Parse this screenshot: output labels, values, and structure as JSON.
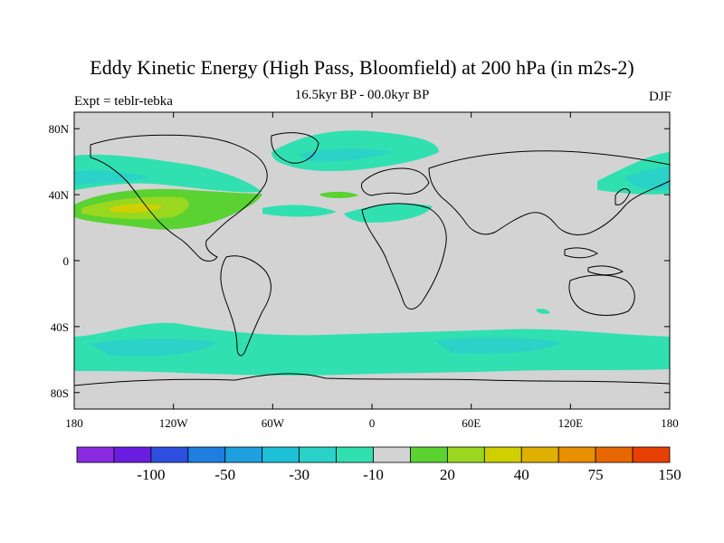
{
  "title": "Eddy Kinetic Energy (High Pass, Bloomfield) at 200 hPa (in m2s-2)",
  "subtitle": "16.5kyr BP - 00.0kyr BP",
  "left_label": "Expt = teblr-tebka",
  "right_label": "DJF",
  "axes": {
    "lat_ticks": [
      "80N",
      "40N",
      "0",
      "40S",
      "80S"
    ],
    "lat_values": [
      80,
      40,
      0,
      -40,
      -80
    ],
    "lon_ticks": [
      "180",
      "120W",
      "60W",
      "0",
      "60E",
      "120E",
      "180"
    ],
    "lon_values": [
      -180,
      -120,
      -60,
      0,
      60,
      120,
      180
    ],
    "lat_range": [
      -90,
      90
    ],
    "lon_range": [
      -180,
      180
    ]
  },
  "colorbar": {
    "labels": [
      "-100",
      "-50",
      "-30",
      "-10",
      "20",
      "40",
      "75",
      "150"
    ],
    "label_after_box": [
      1,
      3,
      5,
      7,
      9,
      11,
      13,
      15
    ],
    "colors": [
      "#8a2be2",
      "#6a1fe0",
      "#2d4fe0",
      "#1e7fe0",
      "#1ea0e0",
      "#1ec0d8",
      "#2ad2c8",
      "#30e0b0",
      "#d3d3d3",
      "#5ad232",
      "#9ad820",
      "#d0d000",
      "#e0b000",
      "#e89000",
      "#e86800",
      "#e84000"
    ]
  },
  "colors": {
    "land": "#d3d3d3",
    "neutral": "#d3d3d3",
    "teal": "#30e0b0",
    "teal_mid": "#2ad2c8",
    "cyan": "#1ec0d8",
    "green": "#5ad232",
    "yellow_green": "#9ad820",
    "olive": "#d0d000"
  }
}
